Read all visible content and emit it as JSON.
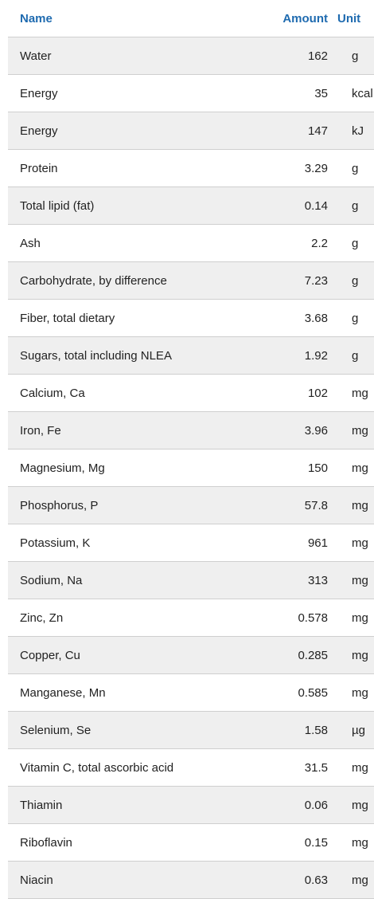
{
  "table": {
    "headers": {
      "name": "Name",
      "amount": "Amount",
      "unit": "Unit"
    },
    "rows": [
      {
        "name": "Water",
        "amount": "162",
        "unit": "g"
      },
      {
        "name": "Energy",
        "amount": "35",
        "unit": "kcal"
      },
      {
        "name": "Energy",
        "amount": "147",
        "unit": "kJ"
      },
      {
        "name": "Protein",
        "amount": "3.29",
        "unit": "g"
      },
      {
        "name": "Total lipid (fat)",
        "amount": "0.14",
        "unit": "g"
      },
      {
        "name": "Ash",
        "amount": "2.2",
        "unit": "g"
      },
      {
        "name": "Carbohydrate, by difference",
        "amount": "7.23",
        "unit": "g"
      },
      {
        "name": "Fiber, total dietary",
        "amount": "3.68",
        "unit": "g"
      },
      {
        "name": "Sugars, total including NLEA",
        "amount": "1.92",
        "unit": "g"
      },
      {
        "name": "Calcium, Ca",
        "amount": "102",
        "unit": "mg"
      },
      {
        "name": "Iron, Fe",
        "amount": "3.96",
        "unit": "mg"
      },
      {
        "name": "Magnesium, Mg",
        "amount": "150",
        "unit": "mg"
      },
      {
        "name": "Phosphorus, P",
        "amount": "57.8",
        "unit": "mg"
      },
      {
        "name": "Potassium, K",
        "amount": "961",
        "unit": "mg"
      },
      {
        "name": "Sodium, Na",
        "amount": "313",
        "unit": "mg"
      },
      {
        "name": "Zinc, Zn",
        "amount": "0.578",
        "unit": "mg"
      },
      {
        "name": "Copper, Cu",
        "amount": "0.285",
        "unit": "mg"
      },
      {
        "name": "Manganese, Mn",
        "amount": "0.585",
        "unit": "mg"
      },
      {
        "name": "Selenium, Se",
        "amount": "1.58",
        "unit": "µg"
      },
      {
        "name": "Vitamin C, total ascorbic acid",
        "amount": "31.5",
        "unit": "mg"
      },
      {
        "name": "Thiamin",
        "amount": "0.06",
        "unit": "mg"
      },
      {
        "name": "Riboflavin",
        "amount": "0.15",
        "unit": "mg"
      },
      {
        "name": "Niacin",
        "amount": "0.63",
        "unit": "mg"
      }
    ]
  }
}
